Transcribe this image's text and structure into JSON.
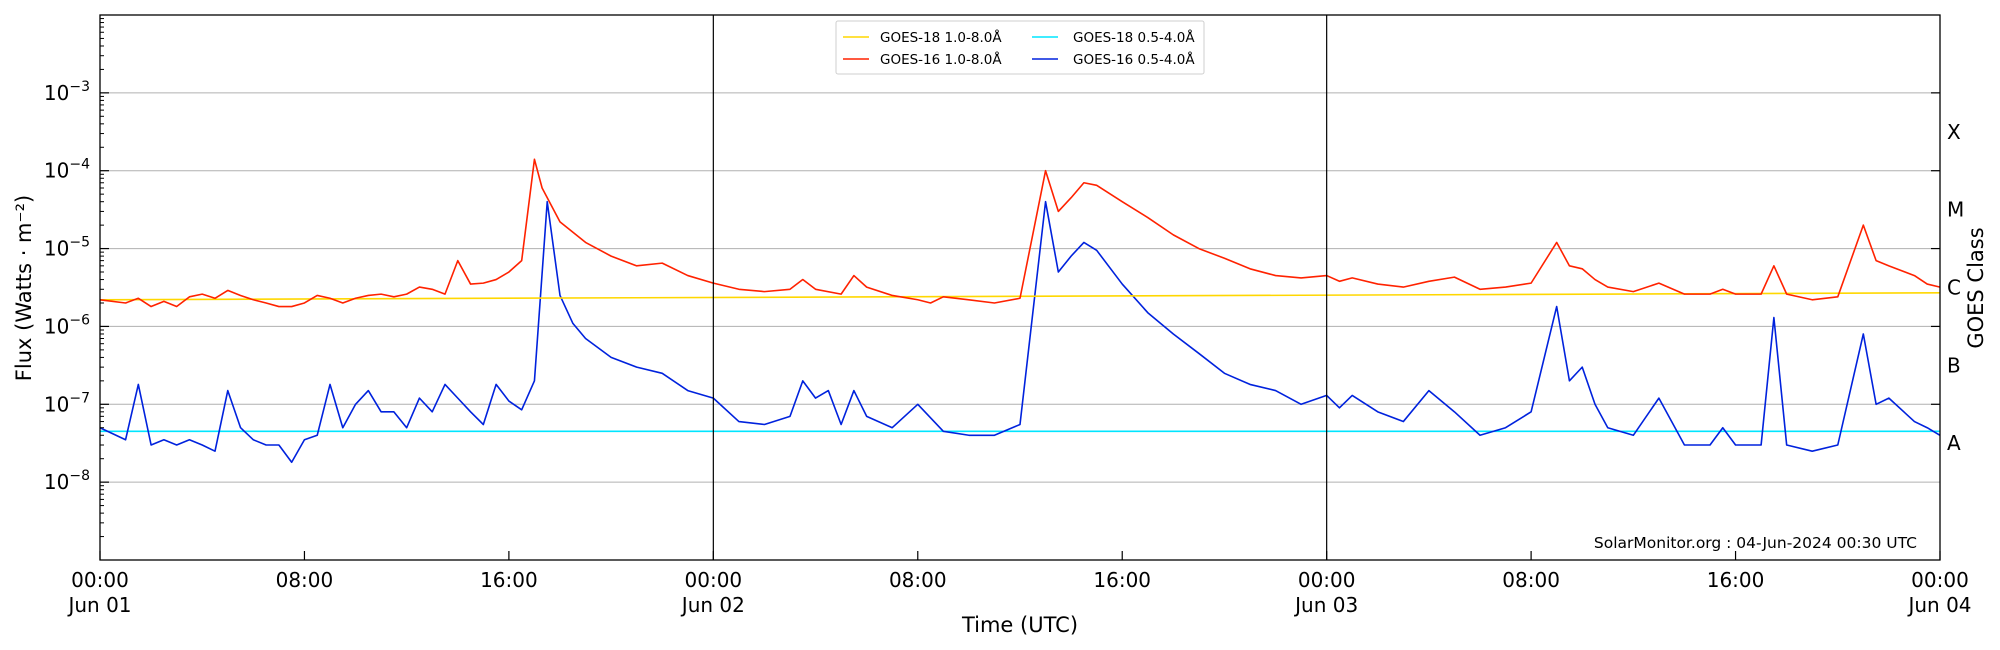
{
  "chart_data": {
    "type": "line",
    "title": "",
    "xlabel": "Time (UTC)",
    "ylabel": "Flux (Watts · m⁻²)",
    "ylabel_right": "GOES Class",
    "y_scale": "log",
    "ylim": [
      1e-09,
      0.01
    ],
    "xlim_hours": [
      0,
      72
    ],
    "x_ticks": [
      {
        "hour": 0,
        "time": "00:00",
        "date": "Jun 01"
      },
      {
        "hour": 8,
        "time": "08:00",
        "date": ""
      },
      {
        "hour": 16,
        "time": "16:00",
        "date": ""
      },
      {
        "hour": 24,
        "time": "00:00",
        "date": "Jun 02"
      },
      {
        "hour": 32,
        "time": "08:00",
        "date": ""
      },
      {
        "hour": 40,
        "time": "16:00",
        "date": ""
      },
      {
        "hour": 48,
        "time": "00:00",
        "date": "Jun 03"
      },
      {
        "hour": 56,
        "time": "08:00",
        "date": ""
      },
      {
        "hour": 64,
        "time": "16:00",
        "date": ""
      },
      {
        "hour": 72,
        "time": "00:00",
        "date": "Jun 04"
      }
    ],
    "y_ticks": [
      {
        "exp": -3,
        "label": "10",
        "sup": "−3"
      },
      {
        "exp": -4,
        "label": "10",
        "sup": "−4"
      },
      {
        "exp": -5,
        "label": "10",
        "sup": "−5"
      },
      {
        "exp": -6,
        "label": "10",
        "sup": "−6"
      },
      {
        "exp": -7,
        "label": "10",
        "sup": "−7"
      },
      {
        "exp": -8,
        "label": "10",
        "sup": "−8"
      }
    ],
    "goes_classes": [
      {
        "label": "X",
        "flux": 0.0001
      },
      {
        "label": "M",
        "flux": 1e-05
      },
      {
        "label": "C",
        "flux": 1e-06
      },
      {
        "label": "B",
        "flux": 1e-07
      },
      {
        "label": "A",
        "flux": 1e-08
      }
    ],
    "day_boundaries_hours": [
      24,
      48
    ],
    "grid": true,
    "legend_placement": "top-center",
    "annotation": "SolarMonitor.org : 04-Jun-2024 00:30 UTC",
    "series": [
      {
        "name": "GOES-18 1.0-8.0Å",
        "color": "#ffd700",
        "points": [
          [
            0,
            2.2e-06
          ],
          [
            72,
            2.7e-06
          ]
        ]
      },
      {
        "name": "GOES-16 1.0-8.0Å",
        "color": "#ff2200",
        "points": [
          [
            0,
            2.2e-06
          ],
          [
            1,
            2e-06
          ],
          [
            1.5,
            2.3e-06
          ],
          [
            2,
            1.8e-06
          ],
          [
            2.5,
            2.1e-06
          ],
          [
            3,
            1.8e-06
          ],
          [
            3.5,
            2.4e-06
          ],
          [
            4,
            2.6e-06
          ],
          [
            4.5,
            2.3e-06
          ],
          [
            5,
            2.9e-06
          ],
          [
            5.5,
            2.5e-06
          ],
          [
            6,
            2.2e-06
          ],
          [
            6.5,
            2e-06
          ],
          [
            7,
            1.8e-06
          ],
          [
            7.5,
            1.8e-06
          ],
          [
            8,
            2e-06
          ],
          [
            8.5,
            2.5e-06
          ],
          [
            9,
            2.3e-06
          ],
          [
            9.5,
            2e-06
          ],
          [
            10,
            2.3e-06
          ],
          [
            10.5,
            2.5e-06
          ],
          [
            11,
            2.6e-06
          ],
          [
            11.5,
            2.4e-06
          ],
          [
            12,
            2.6e-06
          ],
          [
            12.5,
            3.2e-06
          ],
          [
            13,
            3e-06
          ],
          [
            13.5,
            2.6e-06
          ],
          [
            14,
            7e-06
          ],
          [
            14.5,
            3.5e-06
          ],
          [
            15,
            3.6e-06
          ],
          [
            15.5,
            4e-06
          ],
          [
            16,
            5e-06
          ],
          [
            16.5,
            7e-06
          ],
          [
            17,
            0.00014
          ],
          [
            17.3,
            6e-05
          ],
          [
            18,
            2.2e-05
          ],
          [
            19,
            1.2e-05
          ],
          [
            20,
            8e-06
          ],
          [
            21,
            6e-06
          ],
          [
            22,
            6.5e-06
          ],
          [
            23,
            4.5e-06
          ],
          [
            24,
            3.6e-06
          ],
          [
            25,
            3e-06
          ],
          [
            26,
            2.8e-06
          ],
          [
            27,
            3e-06
          ],
          [
            27.5,
            4e-06
          ],
          [
            28,
            3e-06
          ],
          [
            29,
            2.6e-06
          ],
          [
            29.5,
            4.5e-06
          ],
          [
            30,
            3.2e-06
          ],
          [
            31,
            2.5e-06
          ],
          [
            32,
            2.2e-06
          ],
          [
            32.5,
            2e-06
          ],
          [
            33,
            2.4e-06
          ],
          [
            34,
            2.2e-06
          ],
          [
            35,
            2e-06
          ],
          [
            36,
            2.3e-06
          ],
          [
            37,
            0.0001
          ],
          [
            37.5,
            3e-05
          ],
          [
            38,
            4.5e-05
          ],
          [
            38.5,
            7e-05
          ],
          [
            39,
            6.5e-05
          ],
          [
            40,
            4e-05
          ],
          [
            41,
            2.5e-05
          ],
          [
            42,
            1.5e-05
          ],
          [
            43,
            1e-05
          ],
          [
            44,
            7.5e-06
          ],
          [
            45,
            5.5e-06
          ],
          [
            46,
            4.5e-06
          ],
          [
            47,
            4.2e-06
          ],
          [
            48,
            4.5e-06
          ],
          [
            48.5,
            3.8e-06
          ],
          [
            49,
            4.2e-06
          ],
          [
            50,
            3.5e-06
          ],
          [
            51,
            3.2e-06
          ],
          [
            52,
            3.8e-06
          ],
          [
            53,
            4.3e-06
          ],
          [
            54,
            3e-06
          ],
          [
            55,
            3.2e-06
          ],
          [
            56,
            3.6e-06
          ],
          [
            57,
            1.2e-05
          ],
          [
            57.5,
            6e-06
          ],
          [
            58,
            5.5e-06
          ],
          [
            58.5,
            4e-06
          ],
          [
            59,
            3.2e-06
          ],
          [
            60,
            2.8e-06
          ],
          [
            61,
            3.6e-06
          ],
          [
            62,
            2.6e-06
          ],
          [
            63,
            2.6e-06
          ],
          [
            63.5,
            3e-06
          ],
          [
            64,
            2.6e-06
          ],
          [
            65,
            2.6e-06
          ],
          [
            65.5,
            6e-06
          ],
          [
            66,
            2.6e-06
          ],
          [
            67,
            2.2e-06
          ],
          [
            68,
            2.4e-06
          ],
          [
            69,
            2e-05
          ],
          [
            69.5,
            7e-06
          ],
          [
            70,
            6e-06
          ],
          [
            71,
            4.5e-06
          ],
          [
            71.5,
            3.5e-06
          ],
          [
            72,
            3.2e-06
          ]
        ]
      },
      {
        "name": "GOES-18 0.5-4.0Å",
        "color": "#00e5ff",
        "points": [
          [
            0,
            4.5e-08
          ],
          [
            72,
            4.5e-08
          ]
        ]
      },
      {
        "name": "GOES-16 0.5-4.0Å",
        "color": "#0022dd",
        "points": [
          [
            0,
            5e-08
          ],
          [
            1,
            3.5e-08
          ],
          [
            1.5,
            1.8e-07
          ],
          [
            2,
            3e-08
          ],
          [
            2.5,
            3.5e-08
          ],
          [
            3,
            3e-08
          ],
          [
            3.5,
            3.5e-08
          ],
          [
            4,
            3e-08
          ],
          [
            4.5,
            2.5e-08
          ],
          [
            5,
            1.5e-07
          ],
          [
            5.5,
            5e-08
          ],
          [
            6,
            3.5e-08
          ],
          [
            6.5,
            3e-08
          ],
          [
            7,
            3e-08
          ],
          [
            7.5,
            1.8e-08
          ],
          [
            8,
            3.5e-08
          ],
          [
            8.5,
            4e-08
          ],
          [
            9,
            1.8e-07
          ],
          [
            9.5,
            5e-08
          ],
          [
            10,
            1e-07
          ],
          [
            10.5,
            1.5e-07
          ],
          [
            11,
            8e-08
          ],
          [
            11.5,
            8e-08
          ],
          [
            12,
            5e-08
          ],
          [
            12.5,
            1.2e-07
          ],
          [
            13,
            8e-08
          ],
          [
            13.5,
            1.8e-07
          ],
          [
            14,
            1.2e-07
          ],
          [
            14.5,
            8e-08
          ],
          [
            15,
            5.5e-08
          ],
          [
            15.5,
            1.8e-07
          ],
          [
            16,
            1.1e-07
          ],
          [
            16.5,
            8.5e-08
          ],
          [
            17,
            2e-07
          ],
          [
            17.5,
            4e-05
          ],
          [
            18,
            2.5e-06
          ],
          [
            18.5,
            1.1e-06
          ],
          [
            19,
            7e-07
          ],
          [
            20,
            4e-07
          ],
          [
            21,
            3e-07
          ],
          [
            22,
            2.5e-07
          ],
          [
            23,
            1.5e-07
          ],
          [
            24,
            1.2e-07
          ],
          [
            25,
            6e-08
          ],
          [
            26,
            5.5e-08
          ],
          [
            27,
            7e-08
          ],
          [
            27.5,
            2e-07
          ],
          [
            28,
            1.2e-07
          ],
          [
            28.5,
            1.5e-07
          ],
          [
            29,
            5.5e-08
          ],
          [
            29.5,
            1.5e-07
          ],
          [
            30,
            7e-08
          ],
          [
            31,
            5e-08
          ],
          [
            32,
            1e-07
          ],
          [
            33,
            4.5e-08
          ],
          [
            34,
            4e-08
          ],
          [
            35,
            4e-08
          ],
          [
            36,
            5.5e-08
          ],
          [
            37,
            4e-05
          ],
          [
            37.5,
            5e-06
          ],
          [
            38,
            8e-06
          ],
          [
            38.5,
            1.2e-05
          ],
          [
            39,
            9.5e-06
          ],
          [
            40,
            3.5e-06
          ],
          [
            41,
            1.5e-06
          ],
          [
            42,
            8e-07
          ],
          [
            43,
            4.5e-07
          ],
          [
            44,
            2.5e-07
          ],
          [
            45,
            1.8e-07
          ],
          [
            46,
            1.5e-07
          ],
          [
            47,
            1e-07
          ],
          [
            48,
            1.3e-07
          ],
          [
            48.5,
            9e-08
          ],
          [
            49,
            1.3e-07
          ],
          [
            50,
            8e-08
          ],
          [
            51,
            6e-08
          ],
          [
            52,
            1.5e-07
          ],
          [
            53,
            8e-08
          ],
          [
            54,
            4e-08
          ],
          [
            55,
            5e-08
          ],
          [
            56,
            8e-08
          ],
          [
            57,
            1.8e-06
          ],
          [
            57.5,
            2e-07
          ],
          [
            58,
            3e-07
          ],
          [
            58.5,
            1e-07
          ],
          [
            59,
            5e-08
          ],
          [
            60,
            4e-08
          ],
          [
            61,
            1.2e-07
          ],
          [
            62,
            3e-08
          ],
          [
            63,
            3e-08
          ],
          [
            63.5,
            5e-08
          ],
          [
            64,
            3e-08
          ],
          [
            65,
            3e-08
          ],
          [
            65.5,
            1.3e-06
          ],
          [
            66,
            3e-08
          ],
          [
            67,
            2.5e-08
          ],
          [
            68,
            3e-08
          ],
          [
            69,
            8e-07
          ],
          [
            69.5,
            1e-07
          ],
          [
            70,
            1.2e-07
          ],
          [
            71,
            6e-08
          ],
          [
            71.5,
            5e-08
          ],
          [
            72,
            4e-08
          ]
        ]
      }
    ]
  }
}
